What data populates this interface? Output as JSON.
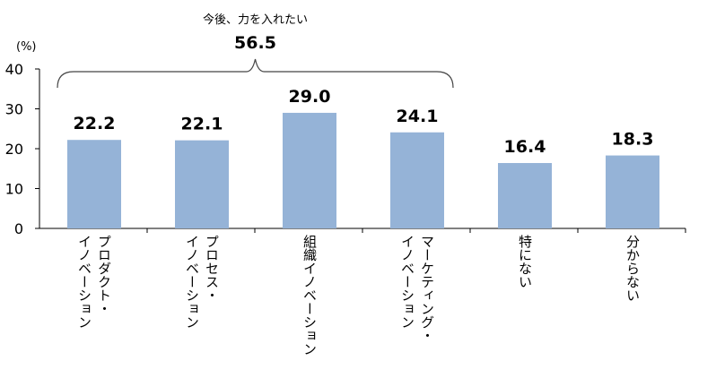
{
  "chart_data": {
    "type": "bar",
    "categories": [
      [
        "プロダクト・",
        "イノベーション"
      ],
      [
        "プロセス・",
        "イノベーション"
      ],
      [
        "組織イノベーション"
      ],
      [
        "マーケティング・",
        "イノベーション"
      ],
      [
        "特にない"
      ],
      [
        "分からない"
      ]
    ],
    "values": [
      22.2,
      22.1,
      29.0,
      24.1,
      16.4,
      18.3
    ],
    "value_labels": [
      "22.2",
      "22.1",
      "29.0",
      "24.1",
      "16.4",
      "18.3"
    ],
    "unit_label": "(%)",
    "ylim": [
      0,
      40
    ],
    "yticks": [
      "0",
      "10",
      "20",
      "30",
      "40"
    ],
    "grid": false,
    "bar_color": "#95b3d7",
    "annotation": {
      "text": "今後、力を入れたい",
      "value": "56.5",
      "spans_categories": [
        0,
        3
      ]
    }
  }
}
